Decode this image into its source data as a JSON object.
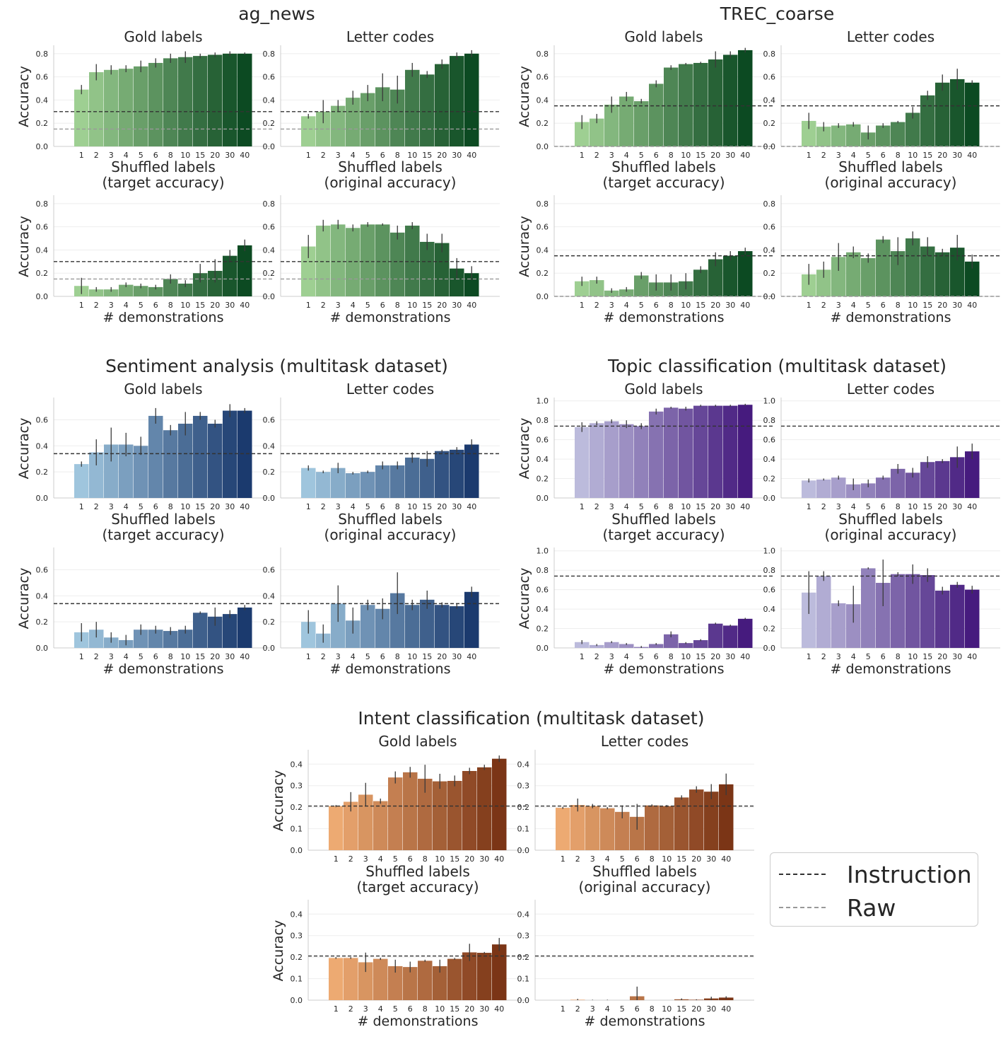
{
  "legend": {
    "instruction": "Instruction",
    "raw": "Raw"
  },
  "chart_data": {
    "type": "bar",
    "x_categories": [
      "1",
      "2",
      "3",
      "4",
      "5",
      "6",
      "8",
      "10",
      "15",
      "20",
      "30",
      "40"
    ],
    "ylabel": "Accuracy",
    "xlabel": "# demonstrations",
    "subplot_titles": {
      "gold": "Gold labels",
      "letter": "Letter codes",
      "shuffled_target": [
        "Shuffled labels",
        "(target accuracy)"
      ],
      "shuffled_original": [
        "Shuffled labels",
        "(original accuracy)"
      ]
    },
    "colors": {
      "green": [
        "#9ecf92",
        "#0c4a22"
      ],
      "blue": [
        "#9fc5dd",
        "#1b3a6e"
      ],
      "purple": [
        "#bcbbdc",
        "#461b7e"
      ],
      "orange": [
        "#edaa72",
        "#7b3516"
      ],
      "instruction_line": "#333333",
      "raw_line": "#999999"
    },
    "groups": [
      {
        "title": "ag_news",
        "palette": "green",
        "instruction": 0.3,
        "raw": 0.15,
        "ylim": [
          0,
          0.86
        ],
        "yticks": [
          "0.0",
          "0.2",
          "0.4",
          "0.6",
          "0.8"
        ],
        "gold": [
          0.49,
          0.64,
          0.66,
          0.67,
          0.69,
          0.72,
          0.76,
          0.77,
          0.78,
          0.79,
          0.8,
          0.8
        ],
        "gold_err": [
          0.04,
          0.07,
          0.04,
          0.03,
          0.05,
          0.04,
          0.04,
          0.05,
          0.02,
          0.02,
          0.02,
          0.01
        ],
        "letter": [
          0.26,
          0.3,
          0.35,
          0.42,
          0.46,
          0.51,
          0.49,
          0.66,
          0.62,
          0.71,
          0.78,
          0.8
        ],
        "letter_err": [
          0.02,
          0.1,
          0.05,
          0.06,
          0.07,
          0.12,
          0.12,
          0.06,
          0.03,
          0.04,
          0.03,
          0.03
        ],
        "shuffled_target": [
          0.09,
          0.06,
          0.06,
          0.1,
          0.09,
          0.08,
          0.15,
          0.11,
          0.2,
          0.22,
          0.35,
          0.44
        ],
        "shuffled_target_err": [
          0.07,
          0.02,
          0.02,
          0.02,
          0.02,
          0.02,
          0.04,
          0.03,
          0.08,
          0.1,
          0.05,
          0.05
        ],
        "shuffled_original": [
          0.43,
          0.61,
          0.62,
          0.59,
          0.62,
          0.62,
          0.55,
          0.61,
          0.47,
          0.46,
          0.24,
          0.2
        ],
        "shuffled_original_err": [
          0.1,
          0.05,
          0.04,
          0.03,
          0.02,
          0.01,
          0.06,
          0.03,
          0.07,
          0.08,
          0.09,
          0.06
        ]
      },
      {
        "title": "TREC_coarse",
        "palette": "green",
        "instruction": 0.35,
        "raw": 0.0,
        "ylim": [
          0,
          0.86
        ],
        "yticks": [
          "0.0",
          "0.2",
          "0.4",
          "0.6",
          "0.8"
        ],
        "gold": [
          0.21,
          0.24,
          0.36,
          0.43,
          0.39,
          0.54,
          0.68,
          0.71,
          0.72,
          0.75,
          0.79,
          0.83
        ],
        "gold_err": [
          0.06,
          0.04,
          0.07,
          0.04,
          0.02,
          0.03,
          0.02,
          0.01,
          0.01,
          0.07,
          0.03,
          0.02
        ],
        "letter": [
          0.22,
          0.17,
          0.18,
          0.19,
          0.12,
          0.18,
          0.21,
          0.29,
          0.44,
          0.55,
          0.58,
          0.55
        ],
        "letter_err": [
          0.07,
          0.04,
          0.02,
          0.02,
          0.06,
          0.02,
          0.01,
          0.05,
          0.04,
          0.07,
          0.09,
          0.02
        ],
        "shuffled_target": [
          0.13,
          0.14,
          0.05,
          0.06,
          0.18,
          0.12,
          0.12,
          0.13,
          0.23,
          0.32,
          0.35,
          0.39
        ],
        "shuffled_target_err": [
          0.04,
          0.03,
          0.02,
          0.02,
          0.03,
          0.07,
          0.07,
          0.07,
          0.03,
          0.06,
          0.04,
          0.03
        ],
        "shuffled_original": [
          0.19,
          0.23,
          0.34,
          0.38,
          0.33,
          0.49,
          0.39,
          0.5,
          0.43,
          0.38,
          0.42,
          0.3
        ],
        "shuffled_original_err": [
          0.09,
          0.07,
          0.12,
          0.05,
          0.04,
          0.03,
          0.12,
          0.06,
          0.08,
          0.03,
          0.11,
          0.06
        ]
      },
      {
        "title": "Sentiment analysis (multitask dataset)",
        "palette": "blue",
        "instruction": 0.34,
        "raw": null,
        "ylim": [
          0,
          0.76
        ],
        "yticks": [
          "0.0",
          "0.2",
          "0.4",
          "0.6"
        ],
        "gold": [
          0.26,
          0.35,
          0.41,
          0.41,
          0.4,
          0.63,
          0.52,
          0.57,
          0.63,
          0.57,
          0.67,
          0.67
        ],
        "gold_err": [
          0.02,
          0.1,
          0.13,
          0.09,
          0.07,
          0.06,
          0.04,
          0.09,
          0.03,
          0.03,
          0.05,
          0.02
        ],
        "letter": [
          0.23,
          0.2,
          0.23,
          0.19,
          0.2,
          0.25,
          0.25,
          0.31,
          0.3,
          0.36,
          0.37,
          0.41
        ],
        "letter_err": [
          0.02,
          0.01,
          0.04,
          0.01,
          0.01,
          0.03,
          0.03,
          0.04,
          0.06,
          0.01,
          0.02,
          0.04
        ],
        "shuffled_target": [
          0.12,
          0.14,
          0.08,
          0.06,
          0.14,
          0.14,
          0.13,
          0.14,
          0.27,
          0.24,
          0.26,
          0.31
        ],
        "shuffled_target_err": [
          0.07,
          0.06,
          0.04,
          0.04,
          0.04,
          0.03,
          0.03,
          0.03,
          0.01,
          0.07,
          0.03,
          0.02
        ],
        "shuffled_original": [
          0.2,
          0.11,
          0.34,
          0.21,
          0.33,
          0.3,
          0.42,
          0.33,
          0.37,
          0.33,
          0.32,
          0.43
        ],
        "shuffled_original_err": [
          0.09,
          0.07,
          0.14,
          0.1,
          0.04,
          0.08,
          0.16,
          0.04,
          0.07,
          0.02,
          0.02,
          0.04
        ]
      },
      {
        "title": "Topic classification (multitask dataset)",
        "palette": "purple",
        "instruction": 0.74,
        "raw": null,
        "ylim": [
          0,
          1.02
        ],
        "yticks": [
          "0.0",
          "0.2",
          "0.4",
          "0.6",
          "0.8",
          "1.0"
        ],
        "gold": [
          0.73,
          0.77,
          0.79,
          0.76,
          0.74,
          0.89,
          0.93,
          0.92,
          0.95,
          0.95,
          0.95,
          0.96
        ],
        "gold_err": [
          0.05,
          0.02,
          0.02,
          0.04,
          0.03,
          0.03,
          0.01,
          0.02,
          0.01,
          0.01,
          0.01,
          0.01
        ],
        "letter": [
          0.18,
          0.19,
          0.21,
          0.14,
          0.15,
          0.21,
          0.3,
          0.26,
          0.37,
          0.38,
          0.42,
          0.48
        ],
        "letter_err": [
          0.02,
          0.01,
          0.02,
          0.06,
          0.04,
          0.02,
          0.05,
          0.05,
          0.06,
          0.02,
          0.11,
          0.08
        ],
        "shuffled_target": [
          0.06,
          0.03,
          0.06,
          0.04,
          0.01,
          0.04,
          0.14,
          0.05,
          0.08,
          0.25,
          0.23,
          0.3
        ],
        "shuffled_target_err": [
          0.02,
          0.01,
          0.01,
          0.01,
          0.01,
          0.01,
          0.03,
          0.01,
          0.01,
          0.01,
          0.01,
          0.01
        ],
        "shuffled_original": [
          0.57,
          0.74,
          0.46,
          0.45,
          0.82,
          0.67,
          0.76,
          0.76,
          0.75,
          0.59,
          0.65,
          0.6
        ],
        "shuffled_original_err": [
          0.22,
          0.05,
          0.03,
          0.19,
          0.01,
          0.24,
          0.02,
          0.1,
          0.07,
          0.04,
          0.03,
          0.04
        ]
      },
      {
        "title": "Intent classification (multitask dataset)",
        "palette": "orange",
        "instruction": 0.205,
        "raw": null,
        "ylim": [
          0,
          0.46
        ],
        "yticks": [
          "0.0",
          "0.1",
          "0.2",
          "0.3",
          "0.4"
        ],
        "gold": [
          0.205,
          0.225,
          0.258,
          0.228,
          0.338,
          0.362,
          0.332,
          0.32,
          0.322,
          0.368,
          0.385,
          0.425
        ],
        "gold_err": [
          0.005,
          0.045,
          0.055,
          0.012,
          0.028,
          0.025,
          0.065,
          0.035,
          0.025,
          0.015,
          0.012,
          0.015
        ],
        "letter": [
          0.197,
          0.21,
          0.205,
          0.195,
          0.178,
          0.155,
          0.208,
          0.205,
          0.245,
          0.282,
          0.272,
          0.306
        ],
        "letter_err": [
          0.005,
          0.03,
          0.01,
          0.005,
          0.03,
          0.06,
          0.005,
          0.005,
          0.01,
          0.015,
          0.035,
          0.05
        ],
        "shuffled_target": [
          0.196,
          0.196,
          0.176,
          0.192,
          0.158,
          0.154,
          0.183,
          0.158,
          0.192,
          0.222,
          0.22,
          0.259
        ],
        "shuffled_target_err": [
          0.004,
          0.004,
          0.045,
          0.005,
          0.03,
          0.025,
          0.005,
          0.03,
          0.004,
          0.04,
          0.004,
          0.03
        ],
        "shuffled_original": [
          0.0,
          0.002,
          0.0,
          0.0,
          0.0,
          0.018,
          0.0,
          0.0,
          0.004,
          0.002,
          0.008,
          0.012
        ],
        "shuffled_original_err": [
          0.0,
          0.004,
          0.002,
          0.002,
          0.0,
          0.045,
          0.0,
          0.0,
          0.004,
          0.002,
          0.008,
          0.006
        ]
      }
    ]
  }
}
